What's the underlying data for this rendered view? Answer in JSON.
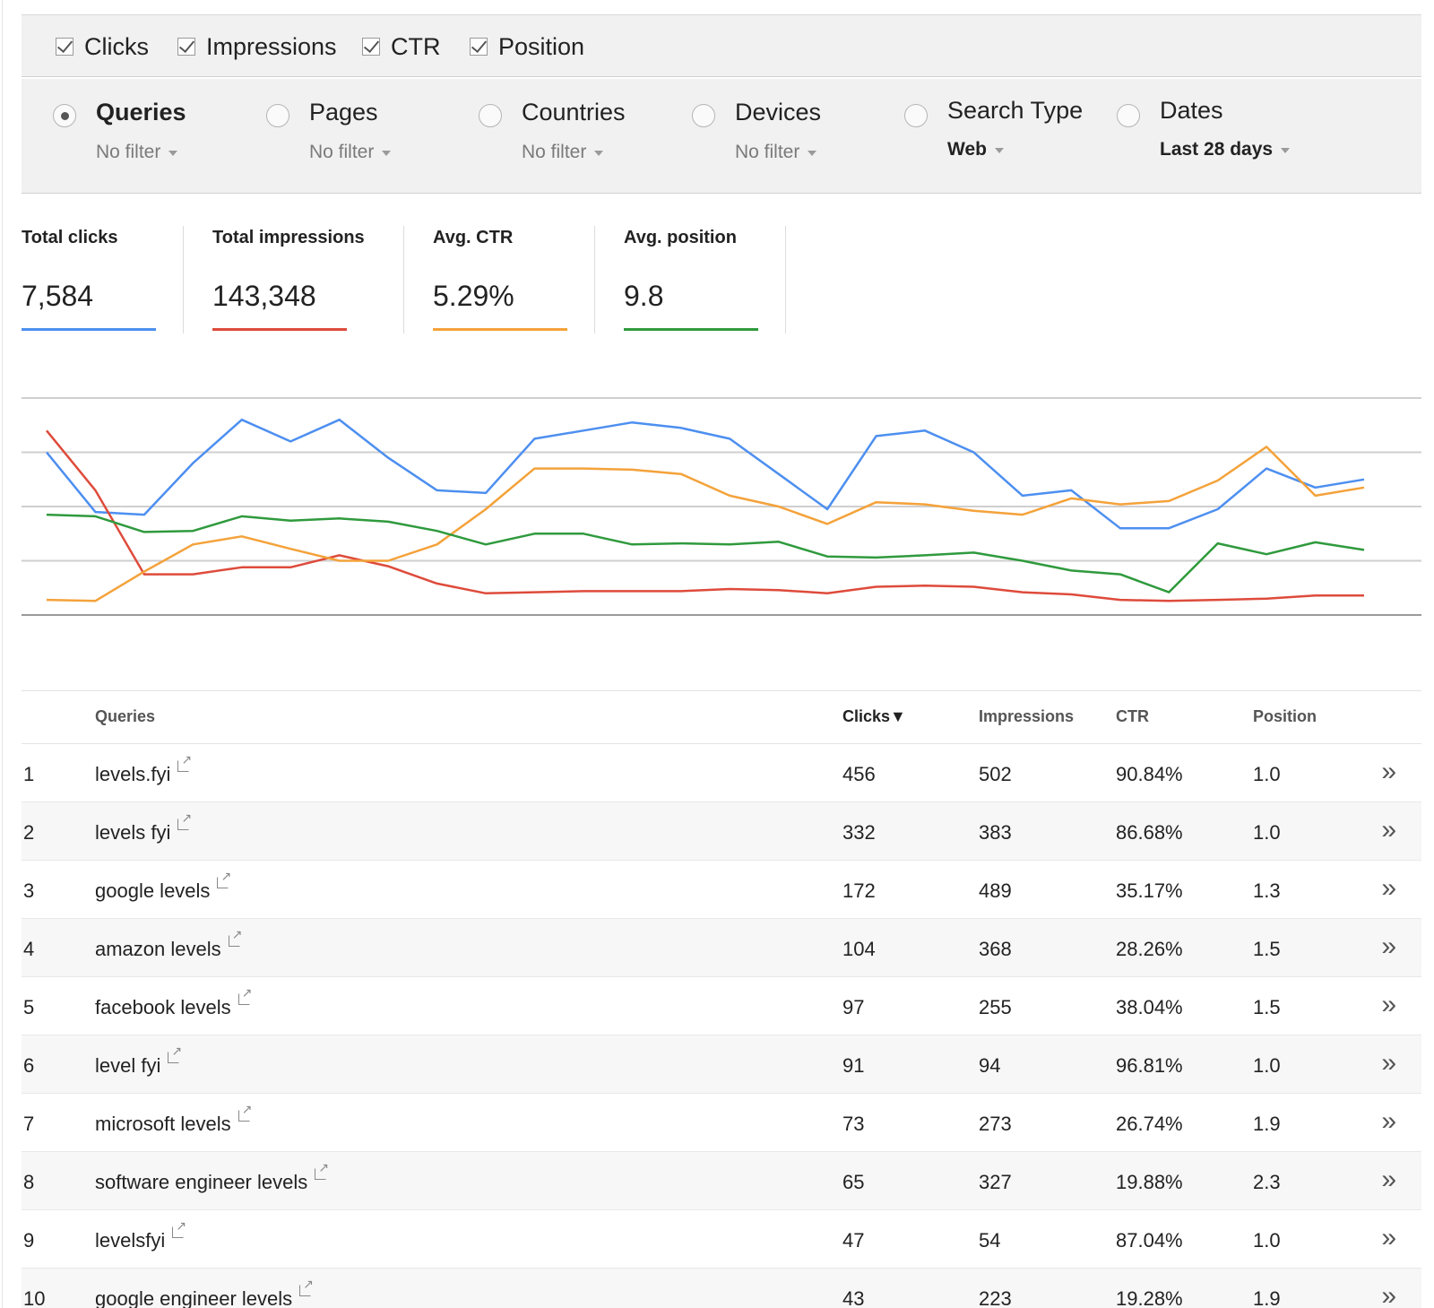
{
  "metrics": [
    {
      "label": "Clicks",
      "checked": true
    },
    {
      "label": "Impressions",
      "checked": true
    },
    {
      "label": "CTR",
      "checked": true
    },
    {
      "label": "Position",
      "checked": true
    }
  ],
  "dimensions": [
    {
      "label": "Queries",
      "filter": "No filter",
      "selected": true
    },
    {
      "label": "Pages",
      "filter": "No filter",
      "selected": false
    },
    {
      "label": "Countries",
      "filter": "No filter",
      "selected": false
    },
    {
      "label": "Devices",
      "filter": "No filter",
      "selected": false
    },
    {
      "label": "Search Type",
      "filter": "Web",
      "selected": false
    },
    {
      "label": "Dates",
      "filter": "Last 28 days",
      "selected": false
    }
  ],
  "summary": [
    {
      "label": "Total clicks",
      "value": "7,584",
      "color": "#4d8ff0"
    },
    {
      "label": "Total impressions",
      "value": "143,348",
      "color": "#de4b3b"
    },
    {
      "label": "Avg. CTR",
      "value": "5.29%",
      "color": "#f4a23a"
    },
    {
      "label": "Avg. position",
      "value": "9.8",
      "color": "#2f9a3d"
    }
  ],
  "chart_data": {
    "type": "line",
    "x": [
      1,
      2,
      3,
      4,
      5,
      6,
      7,
      8,
      9,
      10,
      11,
      12,
      13,
      14,
      15,
      16,
      17,
      18,
      19,
      20,
      21,
      22,
      23,
      24,
      25,
      26,
      27,
      28
    ],
    "grid": true,
    "ylim": [
      0,
      4
    ],
    "series": [
      {
        "color": "#4d8ff0",
        "values": [
          3.0,
          1.9,
          1.85,
          2.8,
          3.6,
          3.2,
          3.6,
          2.9,
          2.3,
          2.25,
          3.25,
          3.4,
          3.55,
          3.45,
          3.25,
          2.6,
          1.95,
          3.3,
          3.4,
          3.0,
          2.2,
          2.3,
          1.6,
          1.6,
          1.95,
          2.7,
          2.35,
          2.5
        ]
      },
      {
        "color": "#de4b3b",
        "values": [
          3.4,
          2.3,
          0.75,
          0.75,
          0.88,
          0.88,
          1.1,
          0.9,
          0.58,
          0.4,
          0.42,
          0.44,
          0.44,
          0.44,
          0.48,
          0.46,
          0.4,
          0.52,
          0.54,
          0.52,
          0.42,
          0.38,
          0.28,
          0.26,
          0.28,
          0.3,
          0.36,
          0.36
        ]
      },
      {
        "color": "#f4a23a",
        "values": [
          0.28,
          0.26,
          0.8,
          1.3,
          1.45,
          1.22,
          1.0,
          1.0,
          1.3,
          1.95,
          2.7,
          2.7,
          2.68,
          2.6,
          2.2,
          2.0,
          1.68,
          2.08,
          2.04,
          1.92,
          1.85,
          2.15,
          2.04,
          2.1,
          2.48,
          3.1,
          2.2,
          2.35
        ]
      },
      {
        "color": "#2f9a3d",
        "values": [
          1.85,
          1.82,
          1.53,
          1.55,
          1.82,
          1.74,
          1.78,
          1.72,
          1.55,
          1.3,
          1.5,
          1.5,
          1.3,
          1.32,
          1.3,
          1.35,
          1.08,
          1.06,
          1.1,
          1.15,
          1.0,
          0.82,
          0.75,
          0.42,
          1.32,
          1.12,
          1.34,
          1.2
        ]
      }
    ]
  },
  "table": {
    "headers": {
      "queries": "Queries",
      "clicks": "Clicks▼",
      "impressions": "Impressions",
      "ctr": "CTR",
      "position": "Position"
    },
    "rows": [
      {
        "rank": "1",
        "query": "levels.fyi",
        "clicks": "456",
        "impressions": "502",
        "ctr": "90.84%",
        "position": "1.0"
      },
      {
        "rank": "2",
        "query": "levels fyi",
        "clicks": "332",
        "impressions": "383",
        "ctr": "86.68%",
        "position": "1.0"
      },
      {
        "rank": "3",
        "query": "google levels",
        "clicks": "172",
        "impressions": "489",
        "ctr": "35.17%",
        "position": "1.3"
      },
      {
        "rank": "4",
        "query": "amazon levels",
        "clicks": "104",
        "impressions": "368",
        "ctr": "28.26%",
        "position": "1.5"
      },
      {
        "rank": "5",
        "query": "facebook levels",
        "clicks": "97",
        "impressions": "255",
        "ctr": "38.04%",
        "position": "1.5"
      },
      {
        "rank": "6",
        "query": "level fyi",
        "clicks": "91",
        "impressions": "94",
        "ctr": "96.81%",
        "position": "1.0"
      },
      {
        "rank": "7",
        "query": "microsoft levels",
        "clicks": "73",
        "impressions": "273",
        "ctr": "26.74%",
        "position": "1.9"
      },
      {
        "rank": "8",
        "query": "software engineer levels",
        "clicks": "65",
        "impressions": "327",
        "ctr": "19.88%",
        "position": "2.3"
      },
      {
        "rank": "9",
        "query": "levelsfyi",
        "clicks": "47",
        "impressions": "54",
        "ctr": "87.04%",
        "position": "1.0"
      },
      {
        "rank": "10",
        "query": "google engineer levels",
        "clicks": "43",
        "impressions": "223",
        "ctr": "19.28%",
        "position": "1.9"
      }
    ],
    "drill_glyph": "»"
  }
}
